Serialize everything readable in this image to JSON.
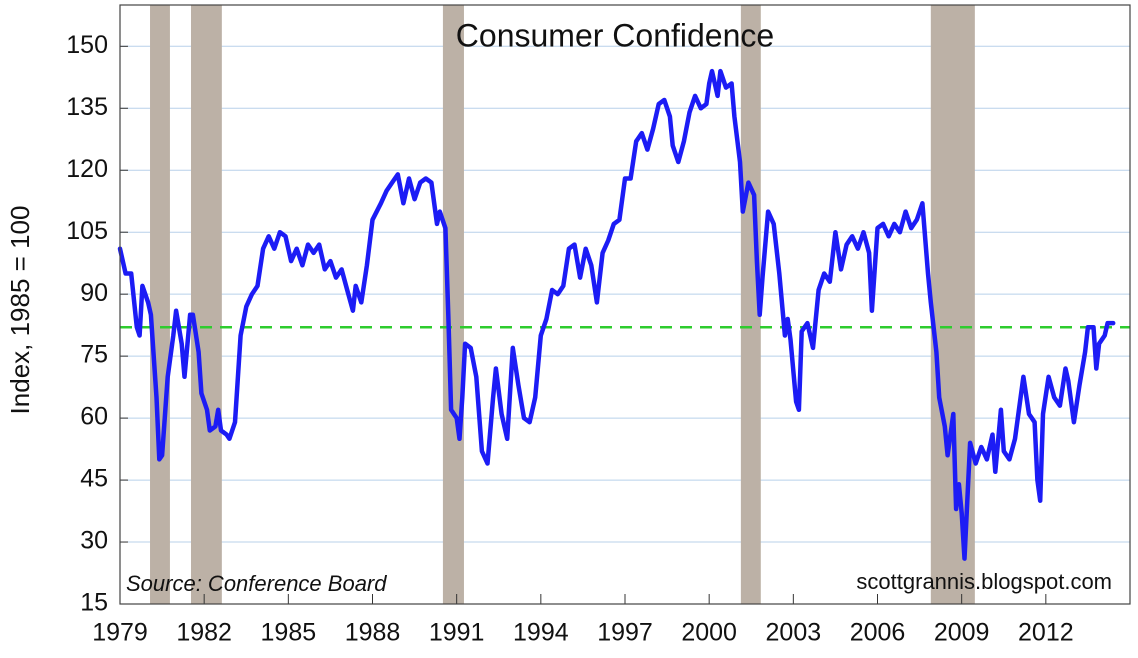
{
  "chart_data": {
    "type": "line",
    "title": "Consumer Confidence",
    "y_label": "Index, 1985 = 100",
    "source": "Source:  Conference Board",
    "watermark": "scottgrannis.blogspot.com",
    "color": "#1c1cf5",
    "xlim": [
      1979,
      2015
    ],
    "xticks": [
      1979,
      1982,
      1985,
      1988,
      1991,
      1994,
      1997,
      2000,
      2003,
      2006,
      2009,
      2012
    ],
    "ylim": [
      15,
      160
    ],
    "yticks": [
      15,
      30,
      45,
      60,
      75,
      90,
      105,
      120,
      135,
      150
    ],
    "grid": true,
    "reference_line": {
      "value": 82,
      "color": "#2ecc2e"
    },
    "band_color": "#bcb1a6",
    "recession_bands": [
      [
        1980.07,
        1980.78
      ],
      [
        1981.53,
        1982.63
      ],
      [
        1990.51,
        1991.26
      ],
      [
        2001.13,
        2001.84
      ],
      [
        2007.9,
        2009.47
      ]
    ],
    "x": [
      1979.0,
      1979.2,
      1979.4,
      1979.6,
      1979.7,
      1979.8,
      1980.0,
      1980.1,
      1980.3,
      1980.4,
      1980.5,
      1980.7,
      1980.9,
      1981.0,
      1981.2,
      1981.3,
      1981.5,
      1981.6,
      1981.8,
      1981.9,
      1982.1,
      1982.2,
      1982.4,
      1982.5,
      1982.6,
      1982.8,
      1982.9,
      1983.1,
      1983.3,
      1983.5,
      1983.7,
      1983.9,
      1984.1,
      1984.3,
      1984.5,
      1984.7,
      1984.9,
      1985.1,
      1985.3,
      1985.5,
      1985.7,
      1985.9,
      1986.1,
      1986.3,
      1986.5,
      1986.7,
      1986.9,
      1987.1,
      1987.3,
      1987.4,
      1987.6,
      1987.8,
      1988.0,
      1988.3,
      1988.5,
      1988.7,
      1988.9,
      1989.1,
      1989.3,
      1989.5,
      1989.7,
      1989.9,
      1990.1,
      1990.3,
      1990.4,
      1990.6,
      1990.7,
      1990.8,
      1991.0,
      1991.1,
      1991.2,
      1991.3,
      1991.5,
      1991.7,
      1991.9,
      1992.1,
      1992.3,
      1992.4,
      1992.6,
      1992.8,
      1993.0,
      1993.2,
      1993.4,
      1993.6,
      1993.8,
      1994.0,
      1994.2,
      1994.4,
      1994.6,
      1994.8,
      1995.0,
      1995.2,
      1995.4,
      1995.6,
      1995.8,
      1996.0,
      1996.2,
      1996.4,
      1996.6,
      1996.8,
      1997.0,
      1997.2,
      1997.4,
      1997.6,
      1997.8,
      1998.0,
      1998.2,
      1998.4,
      1998.6,
      1998.7,
      1998.9,
      1999.1,
      1999.3,
      1999.5,
      1999.7,
      1999.9,
      2000.0,
      2000.1,
      2000.3,
      2000.4,
      2000.6,
      2000.8,
      2000.9,
      2001.1,
      2001.2,
      2001.4,
      2001.6,
      2001.7,
      2001.8,
      2001.9,
      2002.1,
      2002.3,
      2002.5,
      2002.7,
      2002.8,
      2002.9,
      2003.1,
      2003.2,
      2003.3,
      2003.5,
      2003.7,
      2003.9,
      2004.1,
      2004.3,
      2004.5,
      2004.7,
      2004.9,
      2005.1,
      2005.3,
      2005.5,
      2005.7,
      2005.8,
      2006.0,
      2006.2,
      2006.4,
      2006.6,
      2006.8,
      2007.0,
      2007.2,
      2007.4,
      2007.6,
      2007.8,
      2007.9,
      2008.1,
      2008.2,
      2008.4,
      2008.5,
      2008.7,
      2008.8,
      2008.9,
      2009.0,
      2009.1,
      2009.2,
      2009.3,
      2009.5,
      2009.7,
      2009.9,
      2010.1,
      2010.2,
      2010.4,
      2010.5,
      2010.7,
      2010.9,
      2011.1,
      2011.2,
      2011.4,
      2011.6,
      2011.7,
      2011.8,
      2011.9,
      2012.1,
      2012.3,
      2012.5,
      2012.7,
      2012.8,
      2013.0,
      2013.2,
      2013.4,
      2013.5,
      2013.7,
      2013.8,
      2013.9,
      2014.1,
      2014.2,
      2014.4
    ],
    "values": [
      101,
      95,
      95,
      82,
      80,
      92,
      88,
      85,
      65,
      50,
      51,
      70,
      80,
      86,
      78,
      70,
      85,
      85,
      76,
      66,
      62,
      57,
      58,
      62,
      57,
      56,
      55,
      59,
      80,
      87,
      90,
      92,
      101,
      104,
      101,
      105,
      104,
      98,
      101,
      97,
      102,
      100,
      102,
      96,
      98,
      94,
      96,
      91,
      86,
      92,
      88,
      97,
      108,
      112,
      115,
      117,
      119,
      112,
      118,
      113,
      117,
      118,
      117,
      107,
      110,
      106,
      85,
      62,
      60,
      55,
      65,
      78,
      77,
      70,
      52,
      49,
      65,
      72,
      61,
      55,
      77,
      68,
      60,
      59,
      65,
      80,
      84,
      91,
      90,
      92,
      101,
      102,
      94,
      101,
      97,
      88,
      100,
      103,
      107,
      108,
      118,
      118,
      127,
      129,
      125,
      130,
      136,
      137,
      133,
      126,
      122,
      127,
      134,
      138,
      135,
      136,
      141,
      144,
      138,
      144,
      140,
      141,
      133,
      122,
      110,
      117,
      114,
      98,
      85,
      94,
      110,
      107,
      95,
      80,
      84,
      79,
      64,
      62,
      81,
      83,
      77,
      91,
      95,
      93,
      105,
      96,
      102,
      104,
      101,
      105,
      100,
      86,
      106,
      107,
      104,
      107,
      105,
      110,
      106,
      108,
      112,
      95,
      88,
      76,
      65,
      58,
      51,
      61,
      38,
      44,
      37,
      26,
      40,
      54,
      49,
      53,
      50,
      56,
      47,
      62,
      52,
      50,
      55,
      65,
      70,
      61,
      59,
      45,
      40,
      61,
      70,
      65,
      63,
      72,
      69,
      59,
      68,
      76,
      82,
      82,
      72,
      78,
      80,
      83,
      83
    ]
  }
}
